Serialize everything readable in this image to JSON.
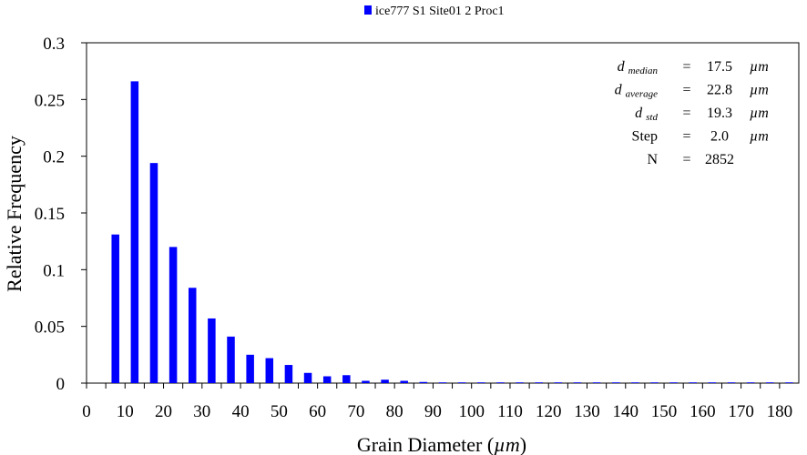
{
  "chart_data": {
    "type": "bar",
    "legend": {
      "label": "ice777 S1 Site01 2 Proc1",
      "position": "top",
      "color": "#0000ff"
    },
    "xlabel_prefix": "Grain Diameter (",
    "xlabel_unit": "µm",
    "xlabel_suffix": ")",
    "ylabel": "Relative Frequency",
    "xlim": [
      0,
      185
    ],
    "ylim": [
      0,
      0.3
    ],
    "xticks": [
      0,
      5,
      10,
      15,
      20,
      25,
      30,
      35,
      40,
      45,
      50,
      55,
      60,
      65,
      70,
      75,
      80,
      85,
      90,
      95,
      100,
      105,
      110,
      115,
      120,
      125,
      130,
      135,
      140,
      145,
      150,
      155,
      160,
      165,
      170,
      175,
      180
    ],
    "xticklabels": [
      "0",
      "",
      "10",
      "",
      "20",
      "",
      "30",
      "",
      "40",
      "",
      "50",
      "",
      "60",
      "",
      "70",
      "",
      "80",
      "",
      "90",
      "",
      "100",
      "",
      "110",
      "",
      "120",
      "",
      "130",
      "",
      "140",
      "",
      "150",
      "",
      "160",
      "",
      "170",
      "",
      "180"
    ],
    "yticks": [
      0,
      0.05,
      0.1,
      0.15,
      0.2,
      0.25,
      0.3
    ],
    "yticklabels": [
      "0",
      "0.05",
      "0.1",
      "0.15",
      "0.2",
      "0.25",
      "0.3"
    ],
    "bar_color": "#0000ff",
    "grid": false,
    "x": [
      7.5,
      12.5,
      17.5,
      22.5,
      27.5,
      32.5,
      37.5,
      42.5,
      47.5,
      52.5,
      57.5,
      62.5,
      67.5,
      72.5,
      77.5,
      82.5,
      87.5,
      92.5,
      97.5,
      102.5,
      107.5,
      112.5,
      117.5,
      122.5,
      127.5,
      132.5,
      137.5,
      142.5,
      147.5,
      152.5,
      157.5,
      162.5,
      167.5,
      172.5,
      177.5,
      182.5
    ],
    "values": [
      0.131,
      0.266,
      0.194,
      0.12,
      0.084,
      0.057,
      0.041,
      0.025,
      0.022,
      0.016,
      0.009,
      0.006,
      0.007,
      0.002,
      0.003,
      0.002,
      0.001,
      0.0005,
      0.0005,
      0.0005,
      0.0003,
      0.0004,
      0.0003,
      0.0003,
      0.0003,
      0.0003,
      0.0003,
      0.0003,
      0.0003,
      0.0003,
      0.0003,
      0.0003,
      0.0003,
      0.0003,
      0.0003,
      0.0003
    ],
    "stats": [
      {
        "sym": "d",
        "sub": "median",
        "eq": "=",
        "val": "17.5",
        "unit": "µm"
      },
      {
        "sym": "d",
        "sub": "average",
        "eq": "=",
        "val": "22.8",
        "unit": "µm"
      },
      {
        "sym": "d",
        "sub": "std",
        "eq": "=",
        "val": "19.3",
        "unit": "µm"
      },
      {
        "sym": "Step",
        "sub": "",
        "eq": "=",
        "val": "2.0",
        "unit": "µm"
      },
      {
        "sym": "N",
        "sub": "",
        "eq": "=",
        "val": "2852",
        "unit": ""
      }
    ]
  }
}
